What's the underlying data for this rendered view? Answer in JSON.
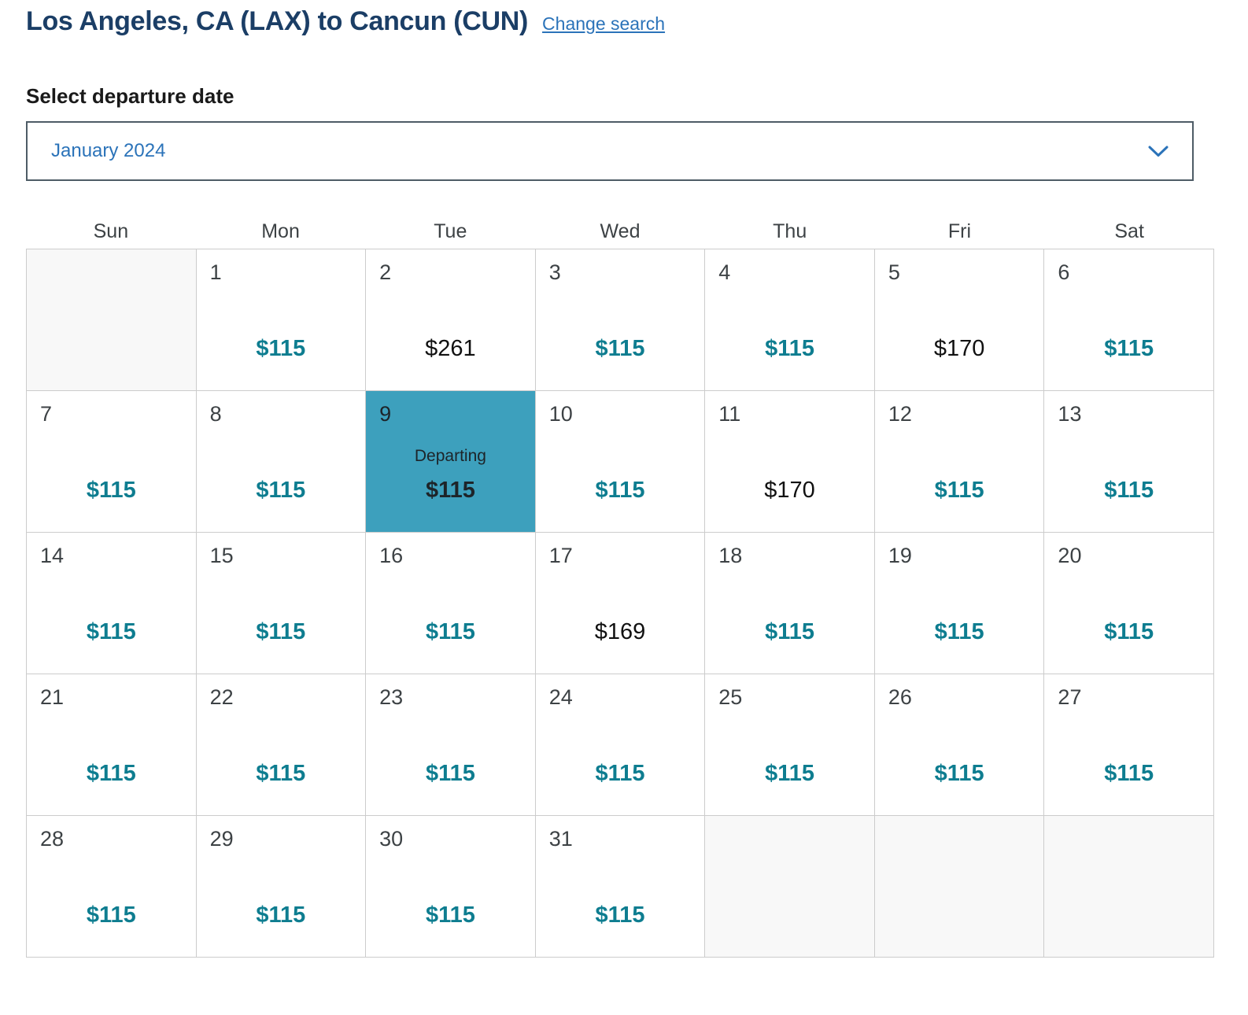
{
  "page": {
    "title": "Los Angeles, CA (LAX) to Cancun (CUN)",
    "change_search": "Change search"
  },
  "departure_section": {
    "label": "Select departure date",
    "month_dropdown": {
      "selected_value": "January 2024",
      "chevron_icon": "chevron-down"
    }
  },
  "calendar": {
    "day_headers": [
      "Sun",
      "Mon",
      "Tue",
      "Wed",
      "Thu",
      "Fri",
      "Sat"
    ],
    "selected_day_label": "Departing",
    "weeks": [
      [
        {
          "day": "",
          "price": "",
          "type": "empty"
        },
        {
          "day": "1",
          "price": "$115",
          "type": "low"
        },
        {
          "day": "2",
          "price": "$261",
          "type": "regular"
        },
        {
          "day": "3",
          "price": "$115",
          "type": "low"
        },
        {
          "day": "4",
          "price": "$115",
          "type": "low"
        },
        {
          "day": "5",
          "price": "$170",
          "type": "regular"
        },
        {
          "day": "6",
          "price": "$115",
          "type": "low"
        }
      ],
      [
        {
          "day": "7",
          "price": "$115",
          "type": "low"
        },
        {
          "day": "8",
          "price": "$115",
          "type": "low"
        },
        {
          "day": "9",
          "price": "$115",
          "type": "selected"
        },
        {
          "day": "10",
          "price": "$115",
          "type": "low"
        },
        {
          "day": "11",
          "price": "$170",
          "type": "regular"
        },
        {
          "day": "12",
          "price": "$115",
          "type": "low"
        },
        {
          "day": "13",
          "price": "$115",
          "type": "low"
        }
      ],
      [
        {
          "day": "14",
          "price": "$115",
          "type": "low"
        },
        {
          "day": "15",
          "price": "$115",
          "type": "low"
        },
        {
          "day": "16",
          "price": "$115",
          "type": "low"
        },
        {
          "day": "17",
          "price": "$169",
          "type": "regular"
        },
        {
          "day": "18",
          "price": "$115",
          "type": "low"
        },
        {
          "day": "19",
          "price": "$115",
          "type": "low"
        },
        {
          "day": "20",
          "price": "$115",
          "type": "low"
        }
      ],
      [
        {
          "day": "21",
          "price": "$115",
          "type": "low"
        },
        {
          "day": "22",
          "price": "$115",
          "type": "low"
        },
        {
          "day": "23",
          "price": "$115",
          "type": "low"
        },
        {
          "day": "24",
          "price": "$115",
          "type": "low"
        },
        {
          "day": "25",
          "price": "$115",
          "type": "low"
        },
        {
          "day": "26",
          "price": "$115",
          "type": "low"
        },
        {
          "day": "27",
          "price": "$115",
          "type": "low"
        }
      ],
      [
        {
          "day": "28",
          "price": "$115",
          "type": "low"
        },
        {
          "day": "29",
          "price": "$115",
          "type": "low"
        },
        {
          "day": "30",
          "price": "$115",
          "type": "low"
        },
        {
          "day": "31",
          "price": "$115",
          "type": "low"
        },
        {
          "day": "",
          "price": "",
          "type": "empty"
        },
        {
          "day": "",
          "price": "",
          "type": "empty"
        },
        {
          "day": "",
          "price": "",
          "type": "empty"
        }
      ]
    ]
  },
  "colors": {
    "heading_navy": "#1b3e66",
    "link_blue": "#2b73b9",
    "fare_teal": "#0e7d90",
    "selected_bg": "#3da0bd",
    "selected_text": "#1d2429",
    "fare_black": "#111111",
    "grid_border": "#cccccc",
    "empty_cell_bg": "#f8f8f8",
    "dropdown_border": "#4e5c66"
  }
}
